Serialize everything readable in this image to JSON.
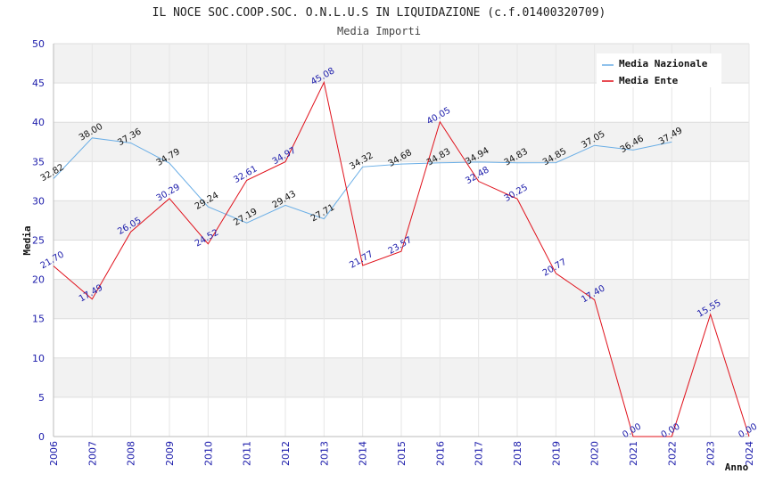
{
  "chart_data": {
    "type": "line",
    "title": "IL NOCE SOC.COOP.SOC. O.N.L.U.S IN LIQUIDAZIONE (c.f.01400320709)",
    "subtitle": "Media Importi",
    "xlabel": "Anno",
    "ylabel": "Media",
    "ylim": [
      0,
      50
    ],
    "yticks": [
      0,
      5,
      10,
      15,
      20,
      25,
      30,
      35,
      40,
      45,
      50
    ],
    "categories": [
      "2006",
      "2007",
      "2008",
      "2009",
      "2010",
      "2011",
      "2012",
      "2013",
      "2014",
      "2015",
      "2016",
      "2017",
      "2018",
      "2019",
      "2020",
      "2021",
      "2022",
      "2023",
      "2024"
    ],
    "legend_position": "top-right",
    "series": [
      {
        "name": "Media Nazionale",
        "color": "#6aaee6",
        "label_color": "#111111",
        "values": [
          32.82,
          38.0,
          37.36,
          34.79,
          29.24,
          27.19,
          29.43,
          27.71,
          34.32,
          34.68,
          34.83,
          34.94,
          34.83,
          34.85,
          37.05,
          36.46,
          37.49,
          null,
          null
        ],
        "labels": [
          "32.82",
          "38.00",
          "37.36",
          "34.79",
          "29.24",
          "27.19",
          "29.43",
          "27.71",
          "34.32",
          "34.68",
          "34.83",
          "34.94",
          "34.83",
          "34.85",
          "37.05",
          "36.46",
          "37.49",
          null,
          null
        ]
      },
      {
        "name": "Media Ente",
        "color": "#e0101a",
        "label_color": "#1a1aaa",
        "values": [
          21.7,
          17.49,
          26.05,
          30.29,
          24.52,
          32.61,
          34.97,
          45.08,
          21.77,
          23.57,
          40.05,
          32.48,
          30.25,
          20.77,
          17.4,
          0.0,
          0.0,
          15.55,
          0.0
        ],
        "labels": [
          "21.70",
          "17.49",
          "26.05",
          "30.29",
          "24.52",
          "32.61",
          "34.97",
          "45.08",
          "21.77",
          "23.57",
          "40.05",
          "32.48",
          "30.25",
          "20.77",
          "17.40",
          "0.00",
          "0.00",
          "15.55",
          "0.00"
        ]
      }
    ]
  }
}
